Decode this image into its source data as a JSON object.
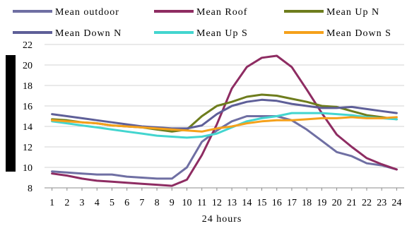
{
  "chart_data": {
    "type": "line",
    "title": "",
    "xlabel": "24 hours",
    "ylabel": "",
    "x": [
      1,
      2,
      3,
      4,
      5,
      6,
      7,
      8,
      9,
      10,
      11,
      12,
      13,
      14,
      15,
      16,
      17,
      18,
      19,
      20,
      21,
      22,
      23,
      24
    ],
    "x_tick_labels": [
      "1",
      "2",
      "3",
      "4",
      "5",
      "6",
      "7",
      "8",
      "9",
      "10",
      "11",
      "12",
      "13",
      "14",
      "15",
      "16",
      "17",
      "18",
      "19",
      "20",
      "21",
      "22",
      "23",
      "24"
    ],
    "ylim": [
      8,
      22
    ],
    "y_tick_labels": [
      "8",
      "10",
      "12",
      "14",
      "16",
      "18",
      "20",
      "22"
    ],
    "grid": "horizontal",
    "legend_placement": "top",
    "series": [
      {
        "name": "Mean outdoor",
        "color": "#6f6fa3",
        "values": [
          9.6,
          9.5,
          9.4,
          9.3,
          9.3,
          9.1,
          9.0,
          8.9,
          8.9,
          10.0,
          12.5,
          13.6,
          14.5,
          15.0,
          15.0,
          15.0,
          14.6,
          13.7,
          12.6,
          11.5,
          11.1,
          10.4,
          10.2,
          9.8
        ]
      },
      {
        "name": "Mean Roof",
        "color": "#8e2c62",
        "values": [
          9.4,
          9.2,
          8.9,
          8.7,
          8.6,
          8.5,
          8.4,
          8.3,
          8.2,
          8.8,
          11.2,
          14.2,
          17.7,
          19.8,
          20.7,
          20.9,
          19.8,
          17.6,
          15.3,
          13.2,
          12.0,
          10.9,
          10.3,
          9.8
        ]
      },
      {
        "name": "Mean Up N",
        "color": "#6e7d1d",
        "values": [
          14.7,
          14.6,
          14.4,
          14.3,
          14.1,
          14.0,
          13.9,
          13.7,
          13.5,
          13.7,
          15.0,
          16.0,
          16.4,
          16.9,
          17.1,
          17.0,
          16.7,
          16.4,
          16.0,
          15.9,
          15.5,
          15.1,
          14.9,
          14.7
        ]
      },
      {
        "name": "Mean Down N",
        "color": "#5e5f98",
        "values": [
          15.2,
          15.0,
          14.8,
          14.6,
          14.4,
          14.2,
          14.0,
          13.9,
          13.8,
          13.8,
          14.1,
          15.2,
          16.0,
          16.4,
          16.6,
          16.5,
          16.2,
          16.0,
          15.8,
          15.8,
          15.9,
          15.7,
          15.5,
          15.3
        ]
      },
      {
        "name": "Mean Up S",
        "color": "#43d5cf",
        "values": [
          14.5,
          14.3,
          14.1,
          13.9,
          13.7,
          13.5,
          13.3,
          13.1,
          13.0,
          12.9,
          13.0,
          13.3,
          13.9,
          14.5,
          14.8,
          15.0,
          15.3,
          15.3,
          15.3,
          15.2,
          15.1,
          14.9,
          14.8,
          14.7
        ]
      },
      {
        "name": "Mean Down S",
        "color": "#f5a11b",
        "values": [
          14.6,
          14.5,
          14.4,
          14.3,
          14.1,
          14.0,
          13.9,
          13.8,
          13.7,
          13.6,
          13.5,
          13.8,
          14.0,
          14.3,
          14.5,
          14.6,
          14.6,
          14.7,
          14.8,
          14.8,
          14.9,
          14.8,
          14.8,
          14.9
        ]
      }
    ]
  }
}
